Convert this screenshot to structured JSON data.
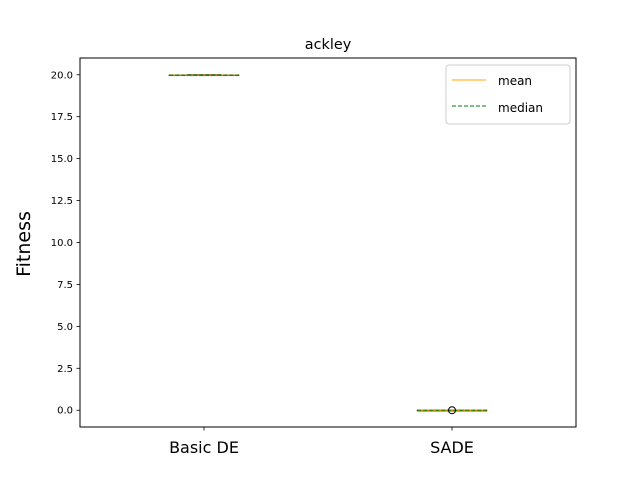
{
  "chart_data": {
    "type": "box",
    "title": "ackley",
    "xlabel": "",
    "ylabel": "Fitness",
    "ylim": [
      -1.0,
      21.0
    ],
    "yticks": [
      0.0,
      2.5,
      5.0,
      7.5,
      10.0,
      12.5,
      15.0,
      17.5,
      20.0
    ],
    "ytick_labels": [
      "0.0",
      "2.5",
      "5.0",
      "7.5",
      "10.0",
      "12.5",
      "15.0",
      "17.5",
      "20.0"
    ],
    "categories": [
      "Basic DE",
      "SADE"
    ],
    "series": [
      {
        "category": "Basic DE",
        "min": 19.96,
        "q1": 19.98,
        "median": 19.98,
        "q3": 19.99,
        "max": 20.0,
        "mean": 19.98,
        "outliers": []
      },
      {
        "category": "SADE",
        "min": 0.0,
        "q1": 0.0,
        "median": 0.0,
        "q3": 0.0,
        "max": 0.0,
        "mean": 0.0,
        "outliers": [
          0.0
        ]
      }
    ],
    "legend": {
      "position": "top-right",
      "entries": [
        {
          "label": "mean",
          "color": "#ffa500",
          "style": "solid"
        },
        {
          "label": "median",
          "color": "#008000",
          "style": "dashed"
        }
      ]
    },
    "colors": {
      "mean": "#ffa500",
      "median": "#008000",
      "box": "#000000"
    },
    "grid": false
  }
}
